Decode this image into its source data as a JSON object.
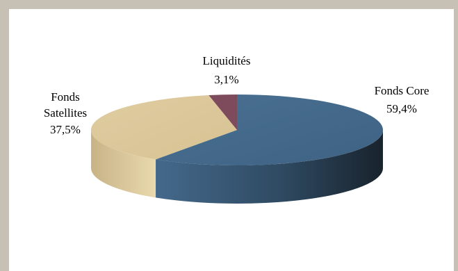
{
  "chart_data": {
    "type": "pie",
    "style": "3d",
    "title": "",
    "slices": [
      {
        "label": "Fonds Core",
        "value": 59.4,
        "display": "59,4%",
        "color": "#44698b"
      },
      {
        "label": "Fonds Satellites",
        "value": 37.5,
        "display": "37,5%",
        "color": "#dcc89b"
      },
      {
        "label": "Liquidités",
        "value": 3.1,
        "display": "3,1%",
        "color": "#7d4b5c"
      }
    ],
    "labels": {
      "core": [
        "Fonds Core",
        "59,4%"
      ],
      "satellites": [
        "Fonds",
        "Satellites",
        "37,5%"
      ],
      "liquidites": [
        "Liquidités",
        "3,1%"
      ]
    }
  }
}
